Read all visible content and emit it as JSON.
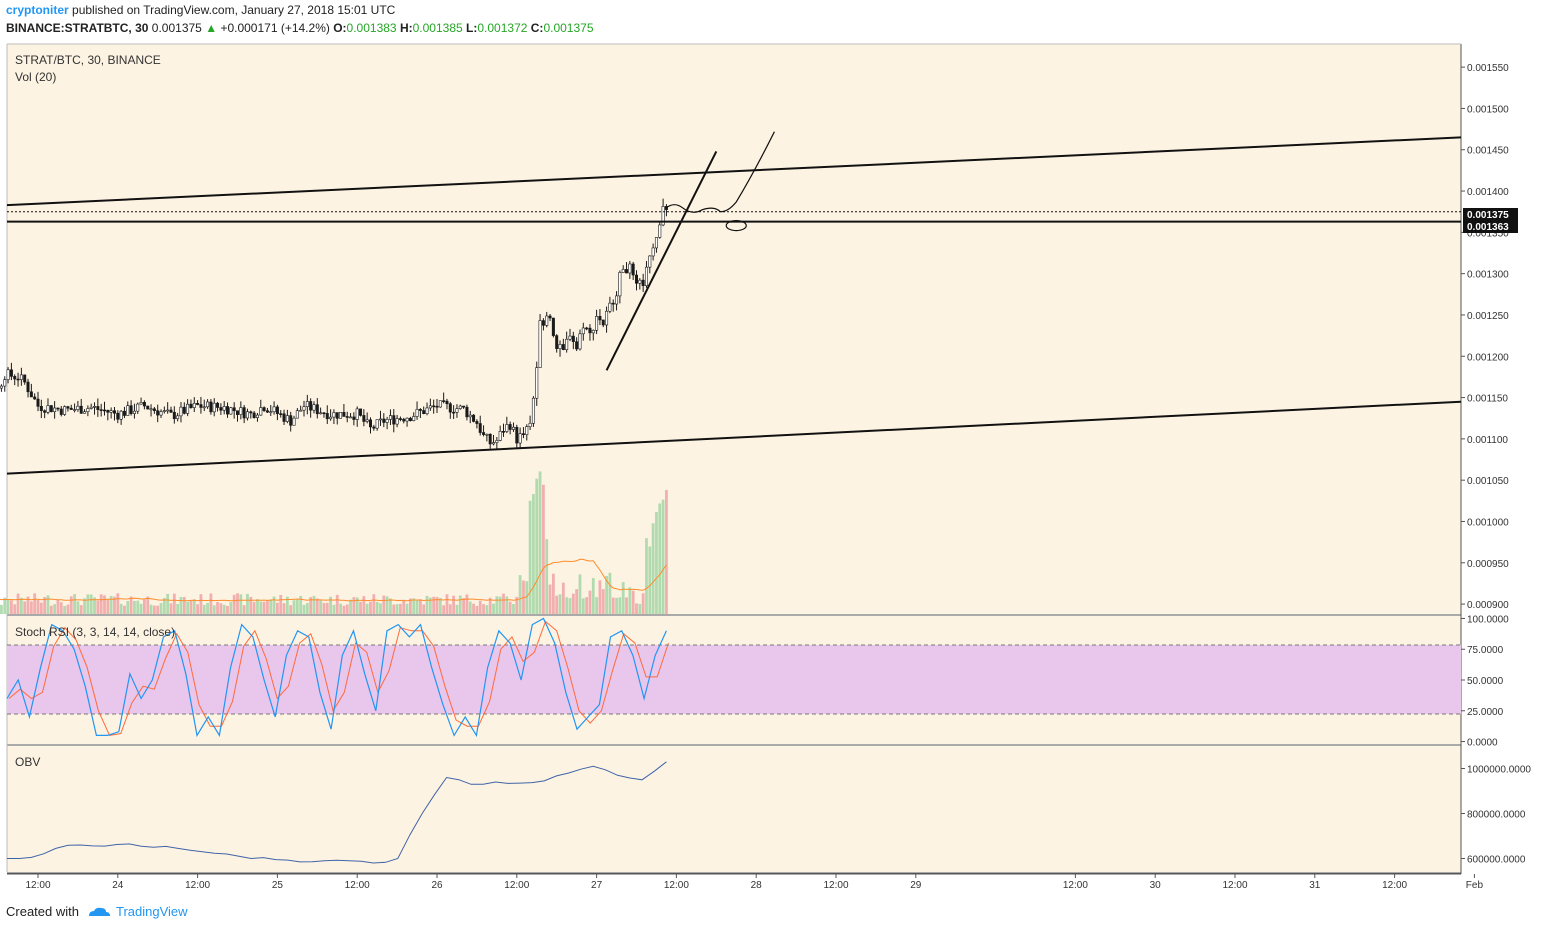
{
  "header": {
    "author": "cryptoniter",
    "published_text": "published on TradingView.com, January 27, 2018 15:01 UTC",
    "symbol": "BINANCE:STRATBTC, 30",
    "last": "0.001375",
    "change_arrow": "▲",
    "change": "+0.000171 (+14.2%)",
    "o_label": "O:",
    "o_value": "0.001383",
    "h_label": "H:",
    "h_value": "0.001385",
    "l_label": "L:",
    "l_value": "0.001372",
    "c_label": "C:",
    "c_value": "0.001375"
  },
  "panes": {
    "price_title": "STRAT/BTC, 30, BINANCE",
    "vol_title": "Vol (20)",
    "stoch_title": "Stoch RSI (3, 3, 14, 14, close)",
    "obv_title": "OBV"
  },
  "price_badges": {
    "last": "0.001375",
    "level": "0.001363"
  },
  "footer": {
    "created_with": "Created with",
    "brand": "TradingView"
  },
  "colors": {
    "background": "#fdf3e3",
    "candle": "#1a1a1a",
    "vol_up": "#a8d8a8",
    "vol_down": "#f0a8a8",
    "vol_ma": "#ff8c2a",
    "stoch_k": "#2196f3",
    "stoch_d": "#ff6a3a",
    "stoch_band": "#e9c6ec",
    "obv": "#3f64a8",
    "accent": "#2196f3"
  },
  "chart_data": [
    {
      "type": "candlestick",
      "pane": "price",
      "title": "STRAT/BTC, 30, BINANCE",
      "y_ticks": [
        "0.001550",
        "0.001500",
        "0.001450",
        "0.001400",
        "0.001350",
        "0.001300",
        "0.001250",
        "0.001200",
        "0.001150",
        "0.001100",
        "0.001050",
        "0.001000",
        "0.000950",
        "0.000900"
      ],
      "ylim": [
        0.000888,
        0.001578
      ],
      "x_ticks": [
        "12:00",
        "24",
        "12:00",
        "25",
        "12:00",
        "26",
        "12:00",
        "27",
        "12:00",
        "28",
        "12:00",
        "29",
        "12:00",
        "30",
        "12:00",
        "31",
        "12:00",
        "Feb"
      ],
      "x_tick_hours": [
        12,
        24,
        36,
        48,
        60,
        72,
        84,
        96,
        108,
        120,
        132,
        144,
        168,
        180,
        192,
        204,
        216,
        228
      ],
      "last_price": 0.001375,
      "horizontal_level": 0.001363,
      "price_anchors": [
        [
          0,
          0.001126
        ],
        [
          4,
          0.00114
        ],
        [
          6,
          0.00116
        ],
        [
          7,
          0.001178
        ],
        [
          9,
          0.001175
        ],
        [
          10,
          0.001168
        ],
        [
          12,
          0.00114
        ],
        [
          16,
          0.001135
        ],
        [
          20,
          0.001138
        ],
        [
          24,
          0.00113
        ],
        [
          28,
          0.00114
        ],
        [
          32,
          0.001128
        ],
        [
          36,
          0.00114
        ],
        [
          40,
          0.001138
        ],
        [
          44,
          0.00113
        ],
        [
          46,
          0.00114
        ],
        [
          50,
          0.001122
        ],
        [
          52,
          0.00114
        ],
        [
          56,
          0.00113
        ],
        [
          60,
          0.00113
        ],
        [
          62,
          0.001112
        ],
        [
          64,
          0.001122
        ],
        [
          68,
          0.001128
        ],
        [
          72,
          0.00114
        ],
        [
          76,
          0.001136
        ],
        [
          78,
          0.00112
        ],
        [
          79,
          0.001103
        ],
        [
          80,
          0.001095
        ],
        [
          81,
          0.001098
        ],
        [
          82,
          0.001112
        ],
        [
          83,
          0.001118
        ],
        [
          84,
          0.0011
        ],
        [
          85,
          0.001105
        ],
        [
          86,
          0.001115
        ],
        [
          87,
          0.00118
        ],
        [
          87.5,
          0.00125
        ],
        [
          88,
          0.00124
        ],
        [
          89,
          0.00125
        ],
        [
          90,
          0.00121
        ],
        [
          91,
          0.001205
        ],
        [
          92,
          0.00123
        ],
        [
          93,
          0.00121
        ],
        [
          94,
          0.00124
        ],
        [
          95,
          0.001225
        ],
        [
          96,
          0.00125
        ],
        [
          97,
          0.00124
        ],
        [
          98,
          0.00126
        ],
        [
          99,
          0.00128
        ],
        [
          100,
          0.00131
        ],
        [
          101,
          0.001305
        ],
        [
          102,
          0.001282
        ],
        [
          103,
          0.00129
        ],
        [
          104,
          0.001315
        ],
        [
          105,
          0.001345
        ],
        [
          106,
          0.001385
        ],
        [
          106.5,
          0.001375
        ]
      ],
      "trendlines_price_at_hours": [
        {
          "name": "upper-channel",
          "from": [
            0,
            0.001383
          ],
          "to": [
            227.5,
            0.001465
          ]
        },
        {
          "name": "lower-channel",
          "from": [
            0,
            0.001058
          ],
          "to": [
            227.5,
            0.001145
          ]
        },
        {
          "name": "rising-support",
          "from": [
            97.5,
            0.001183
          ],
          "to": [
            114,
            0.001448
          ]
        }
      ]
    },
    {
      "type": "bar",
      "pane": "price-overlay",
      "name": "Vol (20)",
      "note": "volume relative height 0-1",
      "spikes": [
        [
          85,
          0.25
        ],
        [
          86.5,
          0.8
        ],
        [
          87,
          0.85
        ],
        [
          87.5,
          0.9
        ],
        [
          88,
          0.5
        ],
        [
          104,
          0.5
        ],
        [
          105,
          0.65
        ],
        [
          106,
          0.85
        ]
      ]
    },
    {
      "type": "line",
      "pane": "stoch",
      "name": "Stoch RSI (3, 3, 14, 14, close)",
      "y_ticks": [
        "100.0000",
        "75.0000",
        "50.0000",
        "25.0000",
        "0.0000"
      ],
      "ylim": [
        -2,
        102
      ],
      "bands": [
        20,
        80
      ],
      "k_values": [
        35,
        50,
        20,
        60,
        95,
        90,
        75,
        45,
        5,
        5,
        8,
        55,
        35,
        50,
        85,
        90,
        55,
        5,
        20,
        5,
        60,
        95,
        85,
        50,
        20,
        70,
        90,
        85,
        40,
        10,
        70,
        90,
        55,
        25,
        90,
        95,
        85,
        95,
        60,
        30,
        5,
        20,
        5,
        60,
        90,
        80,
        50,
        95,
        100,
        80,
        40,
        10,
        20,
        30,
        85,
        90,
        70,
        35,
        70,
        90
      ]
    },
    {
      "type": "line",
      "pane": "obv",
      "name": "OBV",
      "y_ticks": [
        "1000000.0000",
        "800000.0000",
        "600000.0000"
      ],
      "ylim": [
        540000,
        1100000
      ],
      "values": [
        600000,
        605000,
        645000,
        660000,
        655000,
        665000,
        650000,
        645000,
        630000,
        620000,
        600000,
        595000,
        585000,
        590000,
        590000,
        580000,
        600000,
        800000,
        960000,
        930000,
        940000,
        935000,
        945000,
        980000,
        1010000,
        970000,
        950000,
        1030000
      ]
    }
  ]
}
